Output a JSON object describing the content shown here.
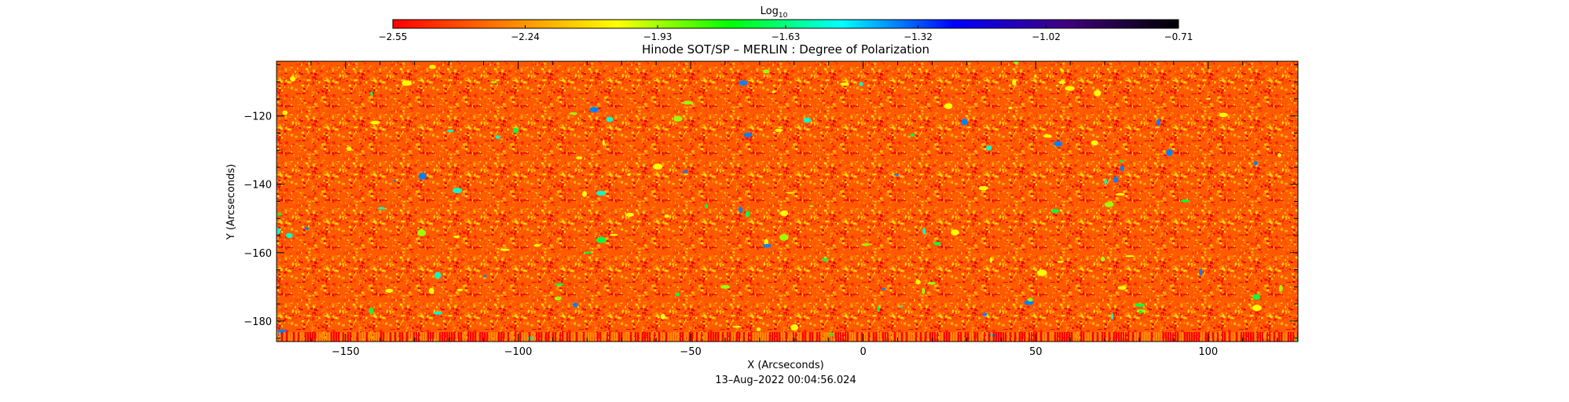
{
  "chart_data": {
    "type": "heatmap",
    "title": "Hinode SOT/SP – MERLIN : Degree of Polarization",
    "xlabel": "X (Arcseconds)",
    "ylabel": "Y (Arcseconds)",
    "xlim": [
      -170,
      126
    ],
    "ylim": [
      -186,
      -104
    ],
    "x_ticks": [
      -150,
      -100,
      -50,
      0,
      50,
      100
    ],
    "x_tick_labels": [
      "−150",
      "−100",
      "−50",
      "0",
      "50",
      "100"
    ],
    "y_ticks": [
      -120,
      -140,
      -160,
      -180
    ],
    "y_tick_labels": [
      "−120",
      "−140",
      "−160",
      "−180"
    ],
    "timestamp": "13–Aug–2022 00:04:56.024",
    "colorbar": {
      "title_base": "Log",
      "title_sub": "10",
      "min": -2.55,
      "max": -0.71,
      "ticks": [
        -2.55,
        -2.24,
        -1.93,
        -1.63,
        -1.32,
        -1.02,
        -0.71
      ],
      "tick_labels": [
        "−2.55",
        "−2.24",
        "−1.93",
        "−1.63",
        "−1.32",
        "−1.02",
        "−0.71"
      ],
      "colors": [
        "#ff0000",
        "#ff7f00",
        "#ffff00",
        "#00ff00",
        "#00ffff",
        "#0000ff",
        "#400080",
        "#000000"
      ]
    },
    "grid": false
  }
}
